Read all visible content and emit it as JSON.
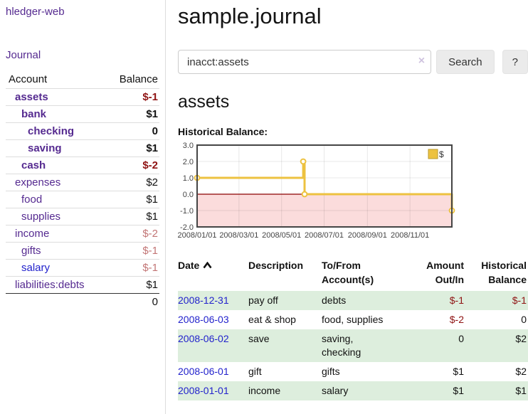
{
  "app": {
    "brand": "hledger-web",
    "nav_journal": "Journal"
  },
  "colors": {
    "link_purple": "#552a90",
    "link_blue": "#2222cc",
    "negative_red": "#8f1313",
    "negative_light": "#c27575",
    "row_green": "#ddeedd",
    "series_gold": "#edc240"
  },
  "sidebar": {
    "header": {
      "account": "Account",
      "balance": "Balance"
    },
    "accounts": [
      {
        "name": "assets",
        "balance": "$-1"
      },
      {
        "name": "bank",
        "balance": "$1"
      },
      {
        "name": "checking",
        "balance": "0"
      },
      {
        "name": "saving",
        "balance": "$1"
      },
      {
        "name": "cash",
        "balance": "$-2"
      },
      {
        "name": "expenses",
        "balance": "$2"
      },
      {
        "name": "food",
        "balance": "$1"
      },
      {
        "name": "supplies",
        "balance": "$1"
      },
      {
        "name": "income",
        "balance": "$-2"
      },
      {
        "name": "gifts",
        "balance": "$-1"
      },
      {
        "name": "salary",
        "balance": "$-1"
      },
      {
        "name": "liabilities:debts",
        "balance": "$1"
      }
    ],
    "total": "0"
  },
  "header": {
    "title": "sample.journal"
  },
  "search": {
    "value": "inacct:assets",
    "clear_icon": "×",
    "button_label": "Search",
    "help_label": "?"
  },
  "account_page": {
    "heading": "assets",
    "chart_label": "Historical Balance:"
  },
  "chart_data": {
    "type": "line",
    "step": true,
    "title": "Historical Balance",
    "x_range": [
      "2008-01-01",
      "2008-12-31"
    ],
    "ylim": [
      -2,
      3
    ],
    "series": [
      {
        "name": "$",
        "color": "#edc240",
        "points": [
          {
            "date": "2008-01-01",
            "value": 1
          },
          {
            "date": "2008-06-01",
            "value": 2
          },
          {
            "date": "2008-06-03",
            "value": 0
          },
          {
            "date": "2008-12-31",
            "value": -1
          }
        ]
      }
    ],
    "y_ticks": [
      {
        "value": 3,
        "label": "3.0"
      },
      {
        "value": 2,
        "label": "2.0"
      },
      {
        "value": 1,
        "label": "1.0"
      },
      {
        "value": 0,
        "label": "0.0"
      },
      {
        "value": -1,
        "label": "-1.0"
      },
      {
        "value": -2,
        "label": "-2.0"
      }
    ],
    "x_ticks": [
      {
        "value": "2008-01-01",
        "label": "2008/01/01"
      },
      {
        "value": "2008-03-01",
        "label": "2008/03/01"
      },
      {
        "value": "2008-05-01",
        "label": "2008/05/01"
      },
      {
        "value": "2008-07-01",
        "label": "2008/07/01"
      },
      {
        "value": "2008-09-01",
        "label": "2008/09/01"
      },
      {
        "value": "2008-11-01",
        "label": "2008/11/01"
      }
    ],
    "legend": {
      "label": "$",
      "position": "top-right"
    },
    "zero_line_color": "#8b0000",
    "negative_fill": "#fbdcdc",
    "grid": true
  },
  "register": {
    "columns": {
      "date": "Date",
      "description": "Description",
      "account": "To/From Account(s)",
      "amount": "Amount Out/In",
      "balance": "Historical Balance"
    },
    "rows": [
      {
        "date": "2008-12-31",
        "description": "pay off",
        "accounts": "debts",
        "amount": "$-1",
        "balance": "$-1"
      },
      {
        "date": "2008-06-03",
        "description": "eat & shop",
        "accounts": "food, supplies",
        "amount": "$-2",
        "balance": "0"
      },
      {
        "date": "2008-06-02",
        "description": "save",
        "accounts": "saving, checking",
        "amount": "0",
        "balance": "$2"
      },
      {
        "date": "2008-06-01",
        "description": "gift",
        "accounts": "gifts",
        "amount": "$1",
        "balance": "$2"
      },
      {
        "date": "2008-01-01",
        "description": "income",
        "accounts": "salary",
        "amount": "$1",
        "balance": "$1"
      }
    ]
  }
}
